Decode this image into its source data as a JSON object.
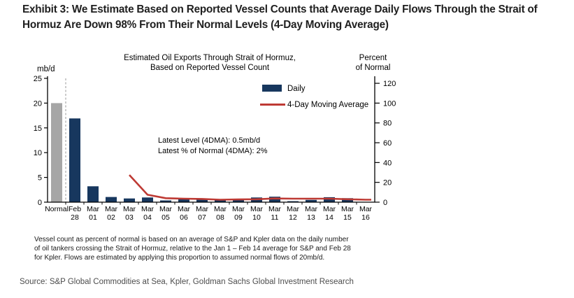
{
  "header": {
    "title_lines": [
      "Exhibit 3: We Estimate Based on Reported Vessel Counts that Average Daily Flows Through the Strait of",
      "Hormuz Are Down 98% From Their Normal Levels (4-Day Moving Average)"
    ]
  },
  "chart_data": {
    "type": "bar+line",
    "title_lines": [
      "Estimated Oil Exports Through Strait of Hormuz,",
      "Based on Reported Vessel Count"
    ],
    "left_axis": {
      "unit": "mb/d",
      "min": 0,
      "max": 25,
      "ticks": [
        0,
        5,
        10,
        15,
        20,
        25
      ]
    },
    "right_axis": {
      "label_lines": [
        "Percent",
        "of Normal"
      ],
      "min": 0,
      "max": 125,
      "ticks": [
        0,
        20,
        40,
        60,
        80,
        100,
        120
      ],
      "percent_of_mbd": 20
    },
    "categories": [
      "Normal",
      "Feb 28",
      "Mar 01",
      "Mar 02",
      "Mar 03",
      "Mar 04",
      "Mar 05",
      "Mar 06",
      "Mar 07",
      "Mar 08",
      "Mar 09",
      "Mar 10",
      "Mar 11",
      "Mar 12",
      "Mar 13",
      "Mar 14",
      "Mar 15",
      "Mar 16"
    ],
    "series": [
      {
        "name": "Daily",
        "type": "bar",
        "color": "#17375E",
        "values": [
          20,
          16.9,
          3.2,
          1.05,
          0.75,
          0.95,
          0.35,
          0.65,
          0.55,
          0.45,
          0.45,
          0.95,
          1.1,
          0.2,
          0.45,
          1.0,
          0.8,
          0
        ]
      },
      {
        "name": "4-Day Moving Average",
        "type": "line",
        "color": "#BE3A34",
        "values": [
          null,
          null,
          null,
          null,
          5.5,
          1.5,
          0.8,
          0.7,
          0.65,
          0.5,
          0.55,
          0.6,
          0.75,
          0.7,
          0.7,
          0.7,
          0.6,
          0.5
        ]
      }
    ],
    "normal_bar": {
      "index": 0,
      "color": "#A6A6A6"
    },
    "separator_after_index": 0,
    "legend": {
      "position": "top-right",
      "entries": [
        {
          "label": "Daily",
          "type": "bar",
          "color": "#17375E"
        },
        {
          "label": "4-Day Moving Average",
          "type": "line",
          "color": "#BE3A34"
        }
      ]
    },
    "annotation_lines": [
      "Latest Level (4DMA): 0.5mb/d",
      "Latest % of Normal (4DMA): 2%"
    ]
  },
  "footnote_lines": [
    "Vessel count as percent of normal is based on an average of S&P and Kpler data on the daily number",
    "of oil tankers crossing the Strait of Hormuz, relative to the Jan 1 – Feb 14 average for S&P and Feb 28",
    "for Kpler. Flows are estimated by applying this proportion to assumed normal flows of 20mb/d."
  ],
  "source": "Source: S&P Global Commodities at Sea, Kpler, Goldman Sachs Global Investment Research"
}
